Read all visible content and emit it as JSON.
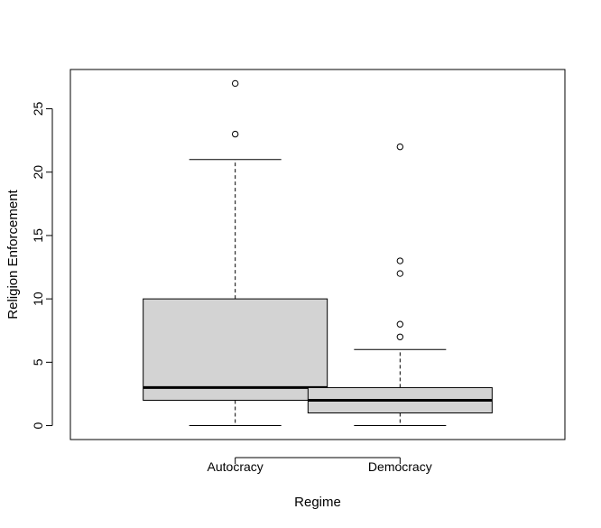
{
  "chart_data": {
    "type": "box",
    "xlabel": "Regime",
    "ylabel": "Religion Enforcement",
    "ylim": [
      -1.1,
      28.1
    ],
    "yticks": [
      0,
      5,
      10,
      15,
      20,
      25
    ],
    "grid": false,
    "colors": {
      "box_fill": "#d3d3d3",
      "stroke": "#000000"
    },
    "categories": [
      "Autocracy",
      "Democracy"
    ],
    "boxes": [
      {
        "name": "Autocracy",
        "whisker_low": 0,
        "q1": 2,
        "median": 3,
        "q3": 10,
        "whisker_high": 21,
        "outliers": [
          23,
          27
        ]
      },
      {
        "name": "Democracy",
        "whisker_low": 0,
        "q1": 1,
        "median": 2,
        "q3": 3,
        "whisker_high": 6,
        "outliers": [
          7,
          8,
          12,
          13,
          22
        ]
      }
    ]
  }
}
